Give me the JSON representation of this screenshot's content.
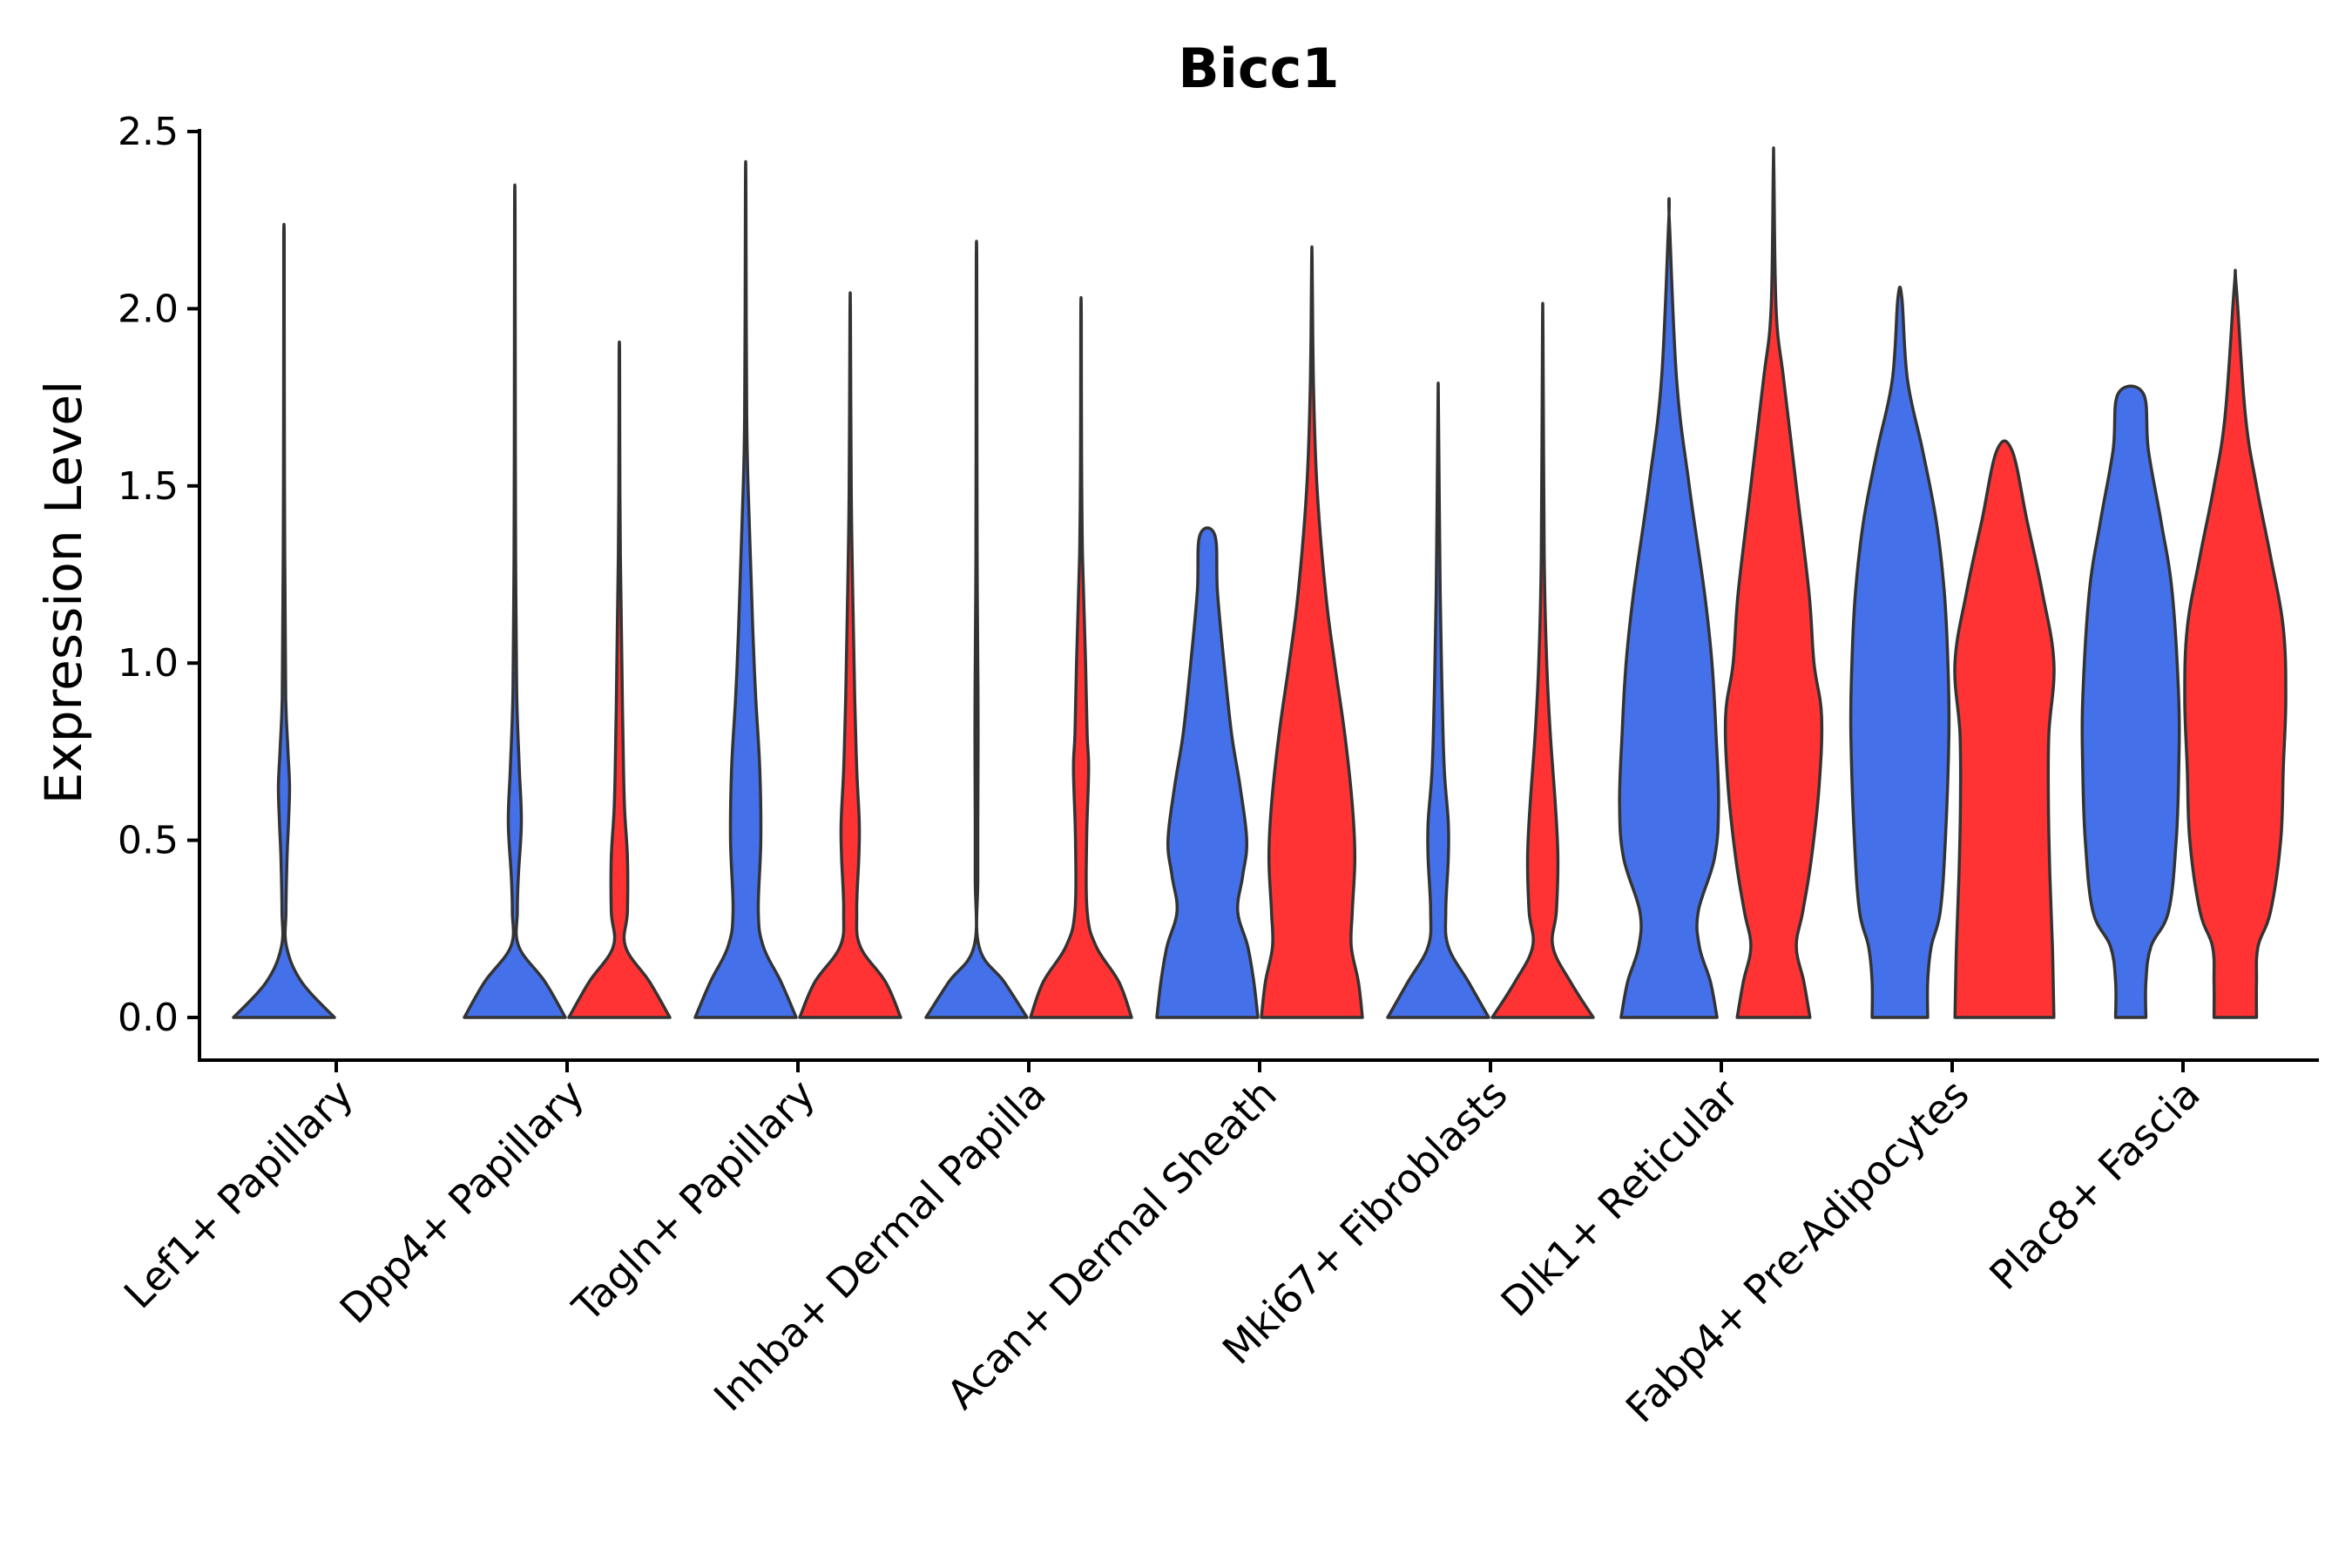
{
  "chart_data": {
    "type": "violin",
    "title": "Bicc1",
    "xlabel": "",
    "ylabel": "Expression Level",
    "ylim": [
      -0.12,
      2.5
    ],
    "yticks": [
      "0.0",
      "0.5",
      "1.0",
      "1.5",
      "2.0",
      "2.5"
    ],
    "ytick_values": [
      0,
      0.5,
      1.0,
      1.5,
      2.0,
      2.5
    ],
    "categories": [
      "Lef1+ Papillary",
      "Dpp4+ Papillary",
      "Tagln+ Papillary",
      "Inhba+ Dermal Papilla",
      "Acan+ Dermal Sheath",
      "Mki67+ Fibroblasts",
      "Dlk1+ Reticular",
      "Fabp4+ Pre-Adipocytes",
      "Plac8+ Fascia"
    ],
    "split_colors": [
      "#4470EA",
      "#FF3333"
    ],
    "violins": [
      {
        "category": "Lef1+ Papillary",
        "group": 0,
        "color": "#4470EA",
        "profile": [
          [
            0,
            1.0
          ],
          [
            0.1,
            0.35
          ],
          [
            0.2,
            0.05
          ],
          [
            0.3,
            0.04
          ],
          [
            0.45,
            0.06
          ],
          [
            0.55,
            0.09
          ],
          [
            0.65,
            0.11
          ],
          [
            0.75,
            0.08
          ],
          [
            0.9,
            0.035
          ],
          [
            1.2,
            0.02
          ],
          [
            1.5,
            0.01
          ],
          [
            2.0,
            0.006
          ],
          [
            2.21,
            0.006
          ]
        ]
      },
      {
        "category": "Dpp4+ Papillary",
        "group": 0,
        "color": "#4470EA",
        "profile": [
          [
            0,
            1.0
          ],
          [
            0.1,
            0.6
          ],
          [
            0.2,
            0.08
          ],
          [
            0.3,
            0.05
          ],
          [
            0.4,
            0.07
          ],
          [
            0.55,
            0.13
          ],
          [
            0.7,
            0.09
          ],
          [
            0.9,
            0.04
          ],
          [
            1.2,
            0.02
          ],
          [
            1.6,
            0.01
          ],
          [
            2.26,
            0.006
          ]
        ]
      },
      {
        "category": "Dpp4+ Papillary",
        "group": 1,
        "color": "#FF3333",
        "profile": [
          [
            0,
            1.0
          ],
          [
            0.1,
            0.6
          ],
          [
            0.2,
            0.12
          ],
          [
            0.3,
            0.16
          ],
          [
            0.45,
            0.16
          ],
          [
            0.6,
            0.1
          ],
          [
            0.8,
            0.07
          ],
          [
            1.0,
            0.05
          ],
          [
            1.3,
            0.02
          ],
          [
            1.6,
            0.008
          ],
          [
            1.87,
            0.006
          ]
        ]
      },
      {
        "category": "Tagln+ Papillary",
        "group": 0,
        "color": "#4470EA",
        "profile": [
          [
            0,
            1.0
          ],
          [
            0.1,
            0.7
          ],
          [
            0.2,
            0.35
          ],
          [
            0.3,
            0.25
          ],
          [
            0.5,
            0.3
          ],
          [
            0.7,
            0.28
          ],
          [
            0.9,
            0.2
          ],
          [
            1.1,
            0.14
          ],
          [
            1.4,
            0.07
          ],
          [
            1.7,
            0.02
          ],
          [
            2.33,
            0.006
          ]
        ]
      },
      {
        "category": "Tagln+ Papillary",
        "group": 1,
        "color": "#FF3333",
        "profile": [
          [
            0,
            1.0
          ],
          [
            0.1,
            0.7
          ],
          [
            0.2,
            0.2
          ],
          [
            0.3,
            0.13
          ],
          [
            0.45,
            0.17
          ],
          [
            0.55,
            0.18
          ],
          [
            0.7,
            0.13
          ],
          [
            0.9,
            0.09
          ],
          [
            1.2,
            0.05
          ],
          [
            1.5,
            0.02
          ],
          [
            1.98,
            0.006
          ]
        ]
      },
      {
        "category": "Inhba+ Dermal Papilla",
        "group": 0,
        "color": "#4470EA",
        "profile": [
          [
            0,
            1.0
          ],
          [
            0.1,
            0.55
          ],
          [
            0.2,
            0.05
          ],
          [
            0.4,
            0.025
          ],
          [
            0.7,
            0.03
          ],
          [
            0.9,
            0.03
          ],
          [
            1.2,
            0.015
          ],
          [
            1.6,
            0.008
          ],
          [
            2.12,
            0.006
          ]
        ]
      },
      {
        "category": "Inhba+ Dermal Papilla",
        "group": 1,
        "color": "#FF3333",
        "profile": [
          [
            0,
            1.0
          ],
          [
            0.1,
            0.75
          ],
          [
            0.2,
            0.3
          ],
          [
            0.3,
            0.12
          ],
          [
            0.5,
            0.11
          ],
          [
            0.7,
            0.15
          ],
          [
            0.8,
            0.12
          ],
          [
            1.0,
            0.09
          ],
          [
            1.3,
            0.03
          ],
          [
            1.6,
            0.01
          ],
          [
            1.98,
            0.006
          ]
        ]
      },
      {
        "category": "Acan+ Dermal Sheath",
        "group": 0,
        "color": "#4470EA",
        "profile": [
          [
            0,
            1.0
          ],
          [
            0.1,
            0.92
          ],
          [
            0.2,
            0.8
          ],
          [
            0.3,
            0.6
          ],
          [
            0.4,
            0.7
          ],
          [
            0.5,
            0.78
          ],
          [
            0.65,
            0.65
          ],
          [
            0.8,
            0.48
          ],
          [
            1.0,
            0.33
          ],
          [
            1.2,
            0.2
          ],
          [
            1.36,
            0.15
          ]
        ]
      },
      {
        "category": "Acan+ Dermal Sheath",
        "group": 1,
        "color": "#FF3333",
        "profile": [
          [
            0,
            1.0
          ],
          [
            0.1,
            0.92
          ],
          [
            0.2,
            0.78
          ],
          [
            0.3,
            0.8
          ],
          [
            0.45,
            0.85
          ],
          [
            0.6,
            0.8
          ],
          [
            0.8,
            0.65
          ],
          [
            1.0,
            0.45
          ],
          [
            1.2,
            0.27
          ],
          [
            1.5,
            0.1
          ],
          [
            1.8,
            0.03
          ],
          [
            2.13,
            0.006
          ]
        ]
      },
      {
        "category": "Mki67+ Fibroblasts",
        "group": 0,
        "color": "#4470EA",
        "profile": [
          [
            0,
            1.0
          ],
          [
            0.1,
            0.6
          ],
          [
            0.2,
            0.2
          ],
          [
            0.3,
            0.15
          ],
          [
            0.45,
            0.2
          ],
          [
            0.55,
            0.2
          ],
          [
            0.7,
            0.12
          ],
          [
            0.9,
            0.08
          ],
          [
            1.2,
            0.04
          ],
          [
            1.72,
            0.006
          ]
        ]
      },
      {
        "category": "Mki67+ Fibroblasts",
        "group": 1,
        "color": "#FF3333",
        "profile": [
          [
            0,
            1.0
          ],
          [
            0.1,
            0.55
          ],
          [
            0.2,
            0.2
          ],
          [
            0.3,
            0.27
          ],
          [
            0.45,
            0.3
          ],
          [
            0.6,
            0.25
          ],
          [
            0.8,
            0.15
          ],
          [
            1.0,
            0.08
          ],
          [
            1.3,
            0.03
          ],
          [
            1.93,
            0.006
          ]
        ]
      },
      {
        "category": "Dlk1+ Reticular",
        "group": 0,
        "color": "#4470EA",
        "profile": [
          [
            0,
            0.95
          ],
          [
            0.1,
            0.82
          ],
          [
            0.2,
            0.6
          ],
          [
            0.3,
            0.58
          ],
          [
            0.45,
            0.9
          ],
          [
            0.6,
            0.98
          ],
          [
            0.8,
            0.93
          ],
          [
            1.0,
            0.85
          ],
          [
            1.2,
            0.7
          ],
          [
            1.5,
            0.4
          ],
          [
            1.8,
            0.15
          ],
          [
            2.25,
            0.006
          ]
        ]
      },
      {
        "category": "Dlk1+ Reticular",
        "group": 1,
        "color": "#FF3333",
        "profile": [
          [
            0,
            0.72
          ],
          [
            0.1,
            0.6
          ],
          [
            0.2,
            0.45
          ],
          [
            0.3,
            0.58
          ],
          [
            0.45,
            0.75
          ],
          [
            0.65,
            0.9
          ],
          [
            0.85,
            0.95
          ],
          [
            1.0,
            0.8
          ],
          [
            1.2,
            0.7
          ],
          [
            1.5,
            0.45
          ],
          [
            1.8,
            0.2
          ],
          [
            2.0,
            0.05
          ],
          [
            2.4,
            0.006
          ]
        ]
      },
      {
        "category": "Fabp4+ Pre-Adipocytes",
        "group": 0,
        "color": "#4470EA",
        "profile": [
          [
            0,
            0.55
          ],
          [
            0.1,
            0.55
          ],
          [
            0.2,
            0.62
          ],
          [
            0.3,
            0.8
          ],
          [
            0.5,
            0.9
          ],
          [
            0.8,
            0.97
          ],
          [
            1.0,
            0.95
          ],
          [
            1.2,
            0.88
          ],
          [
            1.4,
            0.72
          ],
          [
            1.6,
            0.45
          ],
          [
            1.8,
            0.15
          ],
          [
            2.03,
            0.04
          ]
        ]
      },
      {
        "category": "Fabp4+ Pre-Adipocytes",
        "group": 1,
        "color": "#FF3333",
        "profile": [
          [
            0,
            0.98
          ],
          [
            0.2,
            0.95
          ],
          [
            0.4,
            0.9
          ],
          [
            0.6,
            0.87
          ],
          [
            0.8,
            0.88
          ],
          [
            1.0,
            0.98
          ],
          [
            1.2,
            0.75
          ],
          [
            1.4,
            0.45
          ],
          [
            1.6,
            0.15
          ]
        ]
      },
      {
        "category": "Plac8+ Fascia",
        "group": 0,
        "color": "#4470EA",
        "profile": [
          [
            0,
            0.3
          ],
          [
            0.1,
            0.3
          ],
          [
            0.2,
            0.4
          ],
          [
            0.3,
            0.75
          ],
          [
            0.5,
            0.9
          ],
          [
            0.7,
            0.95
          ],
          [
            0.9,
            0.95
          ],
          [
            1.2,
            0.82
          ],
          [
            1.4,
            0.6
          ],
          [
            1.6,
            0.35
          ],
          [
            1.76,
            0.25
          ]
        ]
      },
      {
        "category": "Plac8+ Fascia",
        "group": 1,
        "color": "#FF3333",
        "profile": [
          [
            0,
            0.42
          ],
          [
            0.1,
            0.42
          ],
          [
            0.2,
            0.45
          ],
          [
            0.3,
            0.7
          ],
          [
            0.5,
            0.9
          ],
          [
            0.7,
            0.95
          ],
          [
            0.9,
            1.0
          ],
          [
            1.1,
            0.95
          ],
          [
            1.3,
            0.7
          ],
          [
            1.5,
            0.42
          ],
          [
            1.7,
            0.2
          ],
          [
            2.06,
            0.02
          ]
        ]
      }
    ]
  }
}
